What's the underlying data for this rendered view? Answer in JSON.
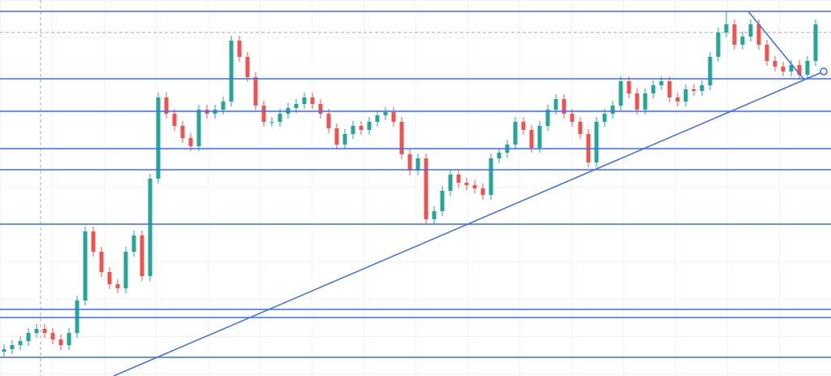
{
  "chart_data": {
    "type": "candlestick",
    "xlim": [
      -0.5,
      101.9
    ],
    "ylim": [
      0,
      463
    ],
    "up_color": "#26a69a",
    "down_color": "#ef5350",
    "line_color": "#3c6cf0",
    "open": [
      30,
      33,
      38,
      43,
      53,
      58,
      53,
      45,
      38,
      53,
      93,
      178,
      153,
      128,
      113,
      108,
      153,
      173,
      123,
      243,
      343,
      323,
      308,
      293,
      283,
      328,
      323,
      328,
      338,
      413,
      393,
      368,
      333,
      313,
      313,
      323,
      330,
      335,
      343,
      335,
      323,
      305,
      285,
      298,
      308,
      303,
      313,
      321,
      325,
      313,
      273,
      253,
      268,
      193,
      203,
      228,
      248,
      238,
      235,
      231,
      223,
      268,
      275,
      285,
      313,
      303,
      281,
      308,
      328,
      341,
      323,
      313,
      298,
      263,
      313,
      323,
      333,
      363,
      348,
      328,
      348,
      358,
      363,
      343,
      338,
      353,
      351,
      358,
      393,
      423,
      433,
      408,
      418,
      433,
      408,
      388,
      381,
      375,
      383,
      371,
      388
    ],
    "high": [
      39,
      44,
      49,
      59,
      64,
      64,
      59,
      51,
      59,
      99,
      184,
      184,
      159,
      134,
      119,
      159,
      179,
      179,
      249,
      349,
      349,
      329,
      314,
      299,
      334,
      334,
      334,
      344,
      419,
      419,
      399,
      374,
      339,
      319,
      329,
      336,
      341,
      349,
      349,
      341,
      329,
      311,
      304,
      314,
      314,
      319,
      327,
      331,
      331,
      319,
      279,
      274,
      274,
      209,
      234,
      254,
      254,
      244,
      241,
      237,
      274,
      281,
      291,
      319,
      319,
      309,
      314,
      334,
      347,
      347,
      329,
      319,
      304,
      319,
      329,
      339,
      369,
      369,
      354,
      354,
      364,
      369,
      369,
      349,
      359,
      359,
      364,
      399,
      429,
      449,
      439,
      424,
      439,
      439,
      414,
      394,
      387,
      389,
      389,
      394,
      439
    ],
    "low": [
      24,
      27,
      32,
      37,
      47,
      47,
      39,
      32,
      32,
      47,
      87,
      147,
      122,
      107,
      102,
      102,
      147,
      117,
      117,
      237,
      317,
      302,
      287,
      277,
      277,
      317,
      317,
      322,
      332,
      387,
      362,
      327,
      307,
      307,
      307,
      317,
      324,
      329,
      329,
      317,
      299,
      279,
      279,
      292,
      297,
      297,
      307,
      315,
      307,
      267,
      247,
      247,
      187,
      187,
      197,
      222,
      232,
      229,
      225,
      217,
      217,
      262,
      269,
      279,
      297,
      275,
      275,
      302,
      322,
      317,
      307,
      292,
      257,
      257,
      307,
      317,
      327,
      342,
      322,
      322,
      342,
      352,
      337,
      332,
      332,
      345,
      345,
      352,
      387,
      417,
      402,
      402,
      412,
      402,
      382,
      375,
      369,
      369,
      365,
      365,
      382
    ],
    "close": [
      33,
      38,
      43,
      53,
      58,
      53,
      45,
      38,
      53,
      93,
      178,
      153,
      128,
      113,
      108,
      153,
      173,
      123,
      243,
      343,
      323,
      308,
      293,
      283,
      328,
      323,
      328,
      338,
      413,
      393,
      368,
      333,
      313,
      313,
      323,
      330,
      335,
      343,
      335,
      323,
      305,
      285,
      298,
      308,
      303,
      313,
      321,
      325,
      313,
      273,
      253,
      268,
      193,
      203,
      228,
      248,
      238,
      235,
      231,
      223,
      268,
      275,
      285,
      313,
      303,
      281,
      308,
      328,
      341,
      323,
      313,
      298,
      263,
      313,
      323,
      333,
      363,
      348,
      328,
      348,
      358,
      363,
      343,
      338,
      353,
      351,
      358,
      393,
      423,
      433,
      408,
      418,
      433,
      408,
      388,
      381,
      375,
      383,
      371,
      388,
      433
    ],
    "levels": [
      449,
      366,
      326,
      280,
      254,
      187,
      82,
      72,
      23
    ],
    "price_line": 423,
    "cursor_x": 4.5,
    "trend_lines": [
      {
        "x": [
          13.5,
          101
        ],
        "values": [
          0,
          375
        ]
      },
      {
        "x": [
          91.7,
          98.5
        ],
        "values": [
          449,
          366
        ]
      }
    ]
  }
}
